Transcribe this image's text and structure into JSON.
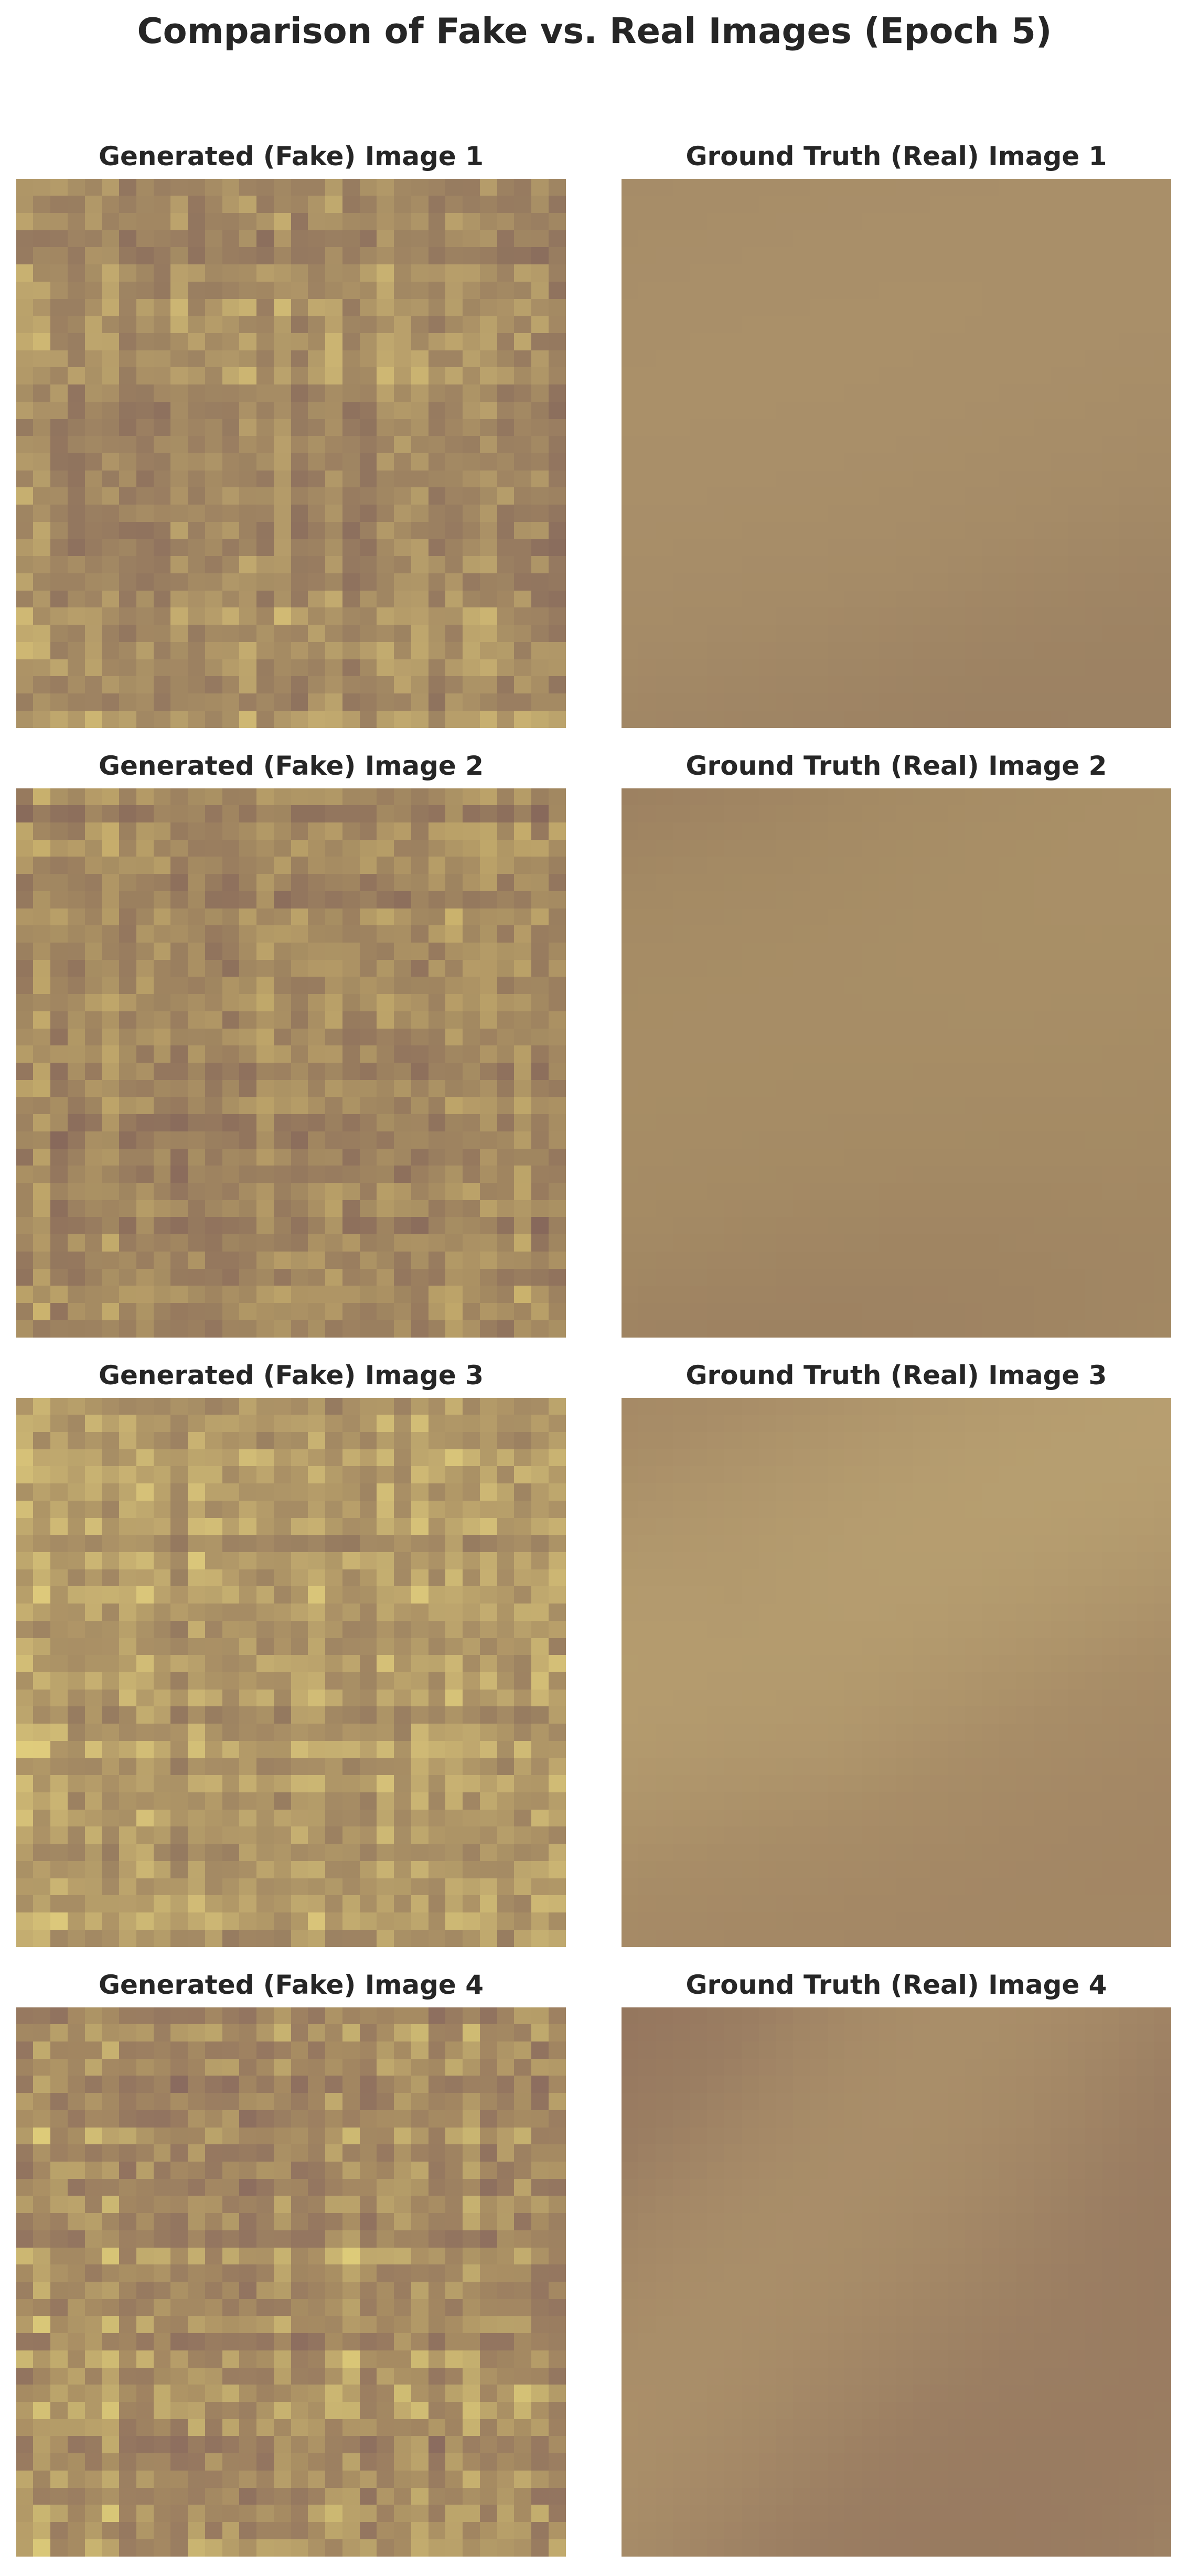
{
  "figure": {
    "title": "Comparison of Fake vs. Real Images (Epoch 5)"
  },
  "panels": [
    {
      "title": "Generated (Fake) Image 1",
      "kind": "fake",
      "seed": 11,
      "base": "#a48a63",
      "accent": "#d8c277",
      "shadow": "#86685c"
    },
    {
      "title": "Ground Truth (Real) Image 1",
      "kind": "real",
      "seed": 21,
      "base": "#a58b67",
      "accent": "#ad936b",
      "shadow": "#957a5f"
    },
    {
      "title": "Generated (Fake) Image 2",
      "kind": "fake",
      "seed": 12,
      "base": "#a38961",
      "accent": "#d2ba70",
      "shadow": "#83635a"
    },
    {
      "title": "Ground Truth (Real) Image 2",
      "kind": "real",
      "seed": 22,
      "base": "#a48a64",
      "accent": "#af966a",
      "shadow": "#8e6f5b"
    },
    {
      "title": "Generated (Fake) Image 3",
      "kind": "fake",
      "seed": 13,
      "base": "#b09767",
      "accent": "#e3d07e",
      "shadow": "#8c705d"
    },
    {
      "title": "Ground Truth (Real) Image 3",
      "kind": "real",
      "seed": 23,
      "base": "#a88d67",
      "accent": "#c9b47b",
      "shadow": "#98795f"
    },
    {
      "title": "Generated (Fake) Image 4",
      "kind": "fake",
      "seed": 14,
      "base": "#a68b62",
      "accent": "#e6d67d",
      "shadow": "#86665e"
    },
    {
      "title": "Ground Truth (Real) Image 4",
      "kind": "real",
      "seed": 24,
      "base": "#9b7e62",
      "accent": "#c2aa75",
      "shadow": "#8c6a58"
    }
  ]
}
